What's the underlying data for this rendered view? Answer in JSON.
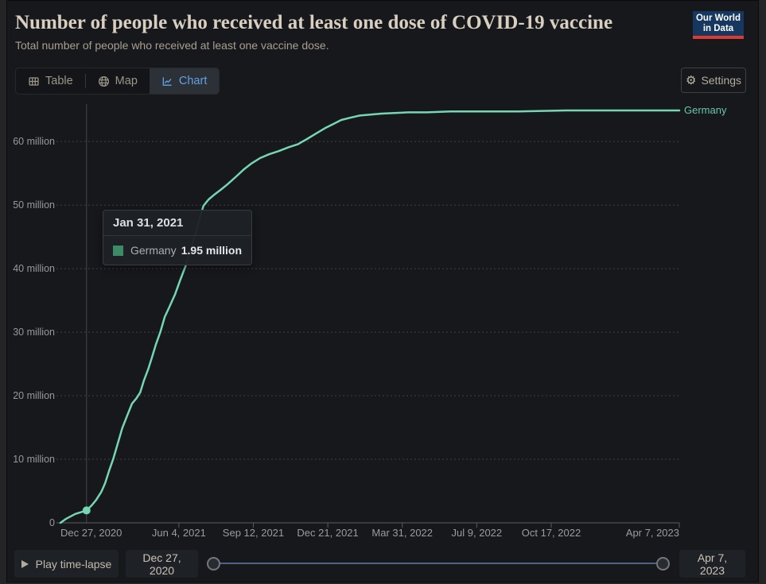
{
  "header": {
    "title": "Number of people who received at least one dose of COVID-19 vaccine",
    "subtitle": "Total number of people who received at least one vaccine dose.",
    "logo": {
      "line1": "Our World",
      "line2": "in Data",
      "bg_color": "#16375f",
      "bar_color": "#dc3b31"
    }
  },
  "tabs": [
    {
      "label": "Table",
      "icon": "table-icon",
      "active": false
    },
    {
      "label": "Map",
      "icon": "globe-icon",
      "active": false
    },
    {
      "label": "Chart",
      "icon": "line-chart-icon",
      "active": true
    }
  ],
  "settings_button": {
    "label": "Settings",
    "icon": "gear-icon"
  },
  "chart_data": {
    "type": "line",
    "title": "Number of people who received at least one dose of COVID-19 vaccine",
    "x_range": [
      "2020-12-27",
      "2023-04-07"
    ],
    "y_range": [
      0,
      65.9
    ],
    "y_unit": "million people",
    "grid": "dashed-horizontal",
    "legend_position": "end-of-line-label",
    "y_ticks": [
      {
        "label": "0",
        "value": 0
      },
      {
        "label": "10 million",
        "value": 10
      },
      {
        "label": "20 million",
        "value": 20
      },
      {
        "label": "30 million",
        "value": 30
      },
      {
        "label": "40 million",
        "value": 40
      },
      {
        "label": "50 million",
        "value": 50
      },
      {
        "label": "60 million",
        "value": 60
      }
    ],
    "x_ticks": [
      {
        "label": "Dec 27, 2020",
        "date": "2020-12-27"
      },
      {
        "label": "Jun 4, 2021",
        "date": "2021-06-04"
      },
      {
        "label": "Sep 12, 2021",
        "date": "2021-09-12"
      },
      {
        "label": "Dec 21, 2021",
        "date": "2021-12-21"
      },
      {
        "label": "Mar 31, 2022",
        "date": "2022-03-31"
      },
      {
        "label": "Jul 9, 2022",
        "date": "2022-07-09"
      },
      {
        "label": "Oct 17, 2022",
        "date": "2022-10-17"
      },
      {
        "label": "Apr 7, 2023",
        "date": "2023-04-07"
      }
    ],
    "series": [
      {
        "name": "Germany",
        "color": "#76d6b2",
        "label_color": "#69c7a6",
        "point_format": [
          "date",
          "value_million"
        ],
        "points": [
          [
            "2020-12-27",
            0
          ],
          [
            "2021-01-03",
            0.6
          ],
          [
            "2021-01-16",
            1.4
          ],
          [
            "2021-01-31",
            1.95
          ],
          [
            "2021-02-07",
            2.75
          ],
          [
            "2021-02-13",
            3.6
          ],
          [
            "2021-02-20",
            4.9
          ],
          [
            "2021-02-25",
            6.25
          ],
          [
            "2021-03-02",
            8.1
          ],
          [
            "2021-03-08",
            10.1
          ],
          [
            "2021-03-14",
            12.5
          ],
          [
            "2021-03-20",
            14.9
          ],
          [
            "2021-03-27",
            17.0
          ],
          [
            "2021-04-02",
            18.75
          ],
          [
            "2021-04-08",
            19.6
          ],
          [
            "2021-04-13",
            20.5
          ],
          [
            "2021-04-18",
            22.4
          ],
          [
            "2021-04-24",
            24.25
          ],
          [
            "2021-04-29",
            26.1
          ],
          [
            "2021-05-04",
            28.0
          ],
          [
            "2021-05-10",
            30.0
          ],
          [
            "2021-05-16",
            32.4
          ],
          [
            "2021-05-22",
            33.9
          ],
          [
            "2021-05-30",
            36.0
          ],
          [
            "2021-06-06",
            38.25
          ],
          [
            "2021-06-13",
            40.4
          ],
          [
            "2021-06-19",
            42.75
          ],
          [
            "2021-06-26",
            45.4
          ],
          [
            "2021-07-02",
            48.0
          ],
          [
            "2021-07-07",
            49.9
          ],
          [
            "2021-07-14",
            50.9
          ],
          [
            "2021-07-21",
            51.6
          ],
          [
            "2021-07-30",
            52.4
          ],
          [
            "2021-08-08",
            53.25
          ],
          [
            "2021-08-19",
            54.4
          ],
          [
            "2021-08-30",
            55.6
          ],
          [
            "2021-09-10",
            56.6
          ],
          [
            "2021-09-21",
            57.4
          ],
          [
            "2021-10-03",
            58.0
          ],
          [
            "2021-10-16",
            58.5
          ],
          [
            "2021-10-29",
            59.1
          ],
          [
            "2021-11-11",
            59.6
          ],
          [
            "2021-11-23",
            60.4
          ],
          [
            "2021-12-05",
            61.25
          ],
          [
            "2021-12-17",
            62.1
          ],
          [
            "2021-12-28",
            62.75
          ],
          [
            "2022-01-08",
            63.4
          ],
          [
            "2022-01-20",
            63.75
          ],
          [
            "2022-02-02",
            64.1
          ],
          [
            "2022-02-16",
            64.25
          ],
          [
            "2022-03-03",
            64.4
          ],
          [
            "2022-03-20",
            64.5
          ],
          [
            "2022-04-08",
            64.6
          ],
          [
            "2022-05-03",
            64.6
          ],
          [
            "2022-06-04",
            64.75
          ],
          [
            "2022-07-11",
            64.75
          ],
          [
            "2022-09-03",
            64.75
          ],
          [
            "2022-11-06",
            64.9
          ],
          [
            "2023-01-20",
            64.9
          ],
          [
            "2023-04-07",
            64.9
          ]
        ]
      }
    ]
  },
  "tooltip": {
    "date": "Jan 31, 2021",
    "series_name": "Germany",
    "value": "1.95 million",
    "swatch_color": "#3c8b66",
    "point": {
      "date": "2021-01-31",
      "value": 1.95
    }
  },
  "timeline": {
    "play_label": "Play time-lapse",
    "start": "Dec 27, 2020",
    "end": "Apr 7, 2023"
  }
}
